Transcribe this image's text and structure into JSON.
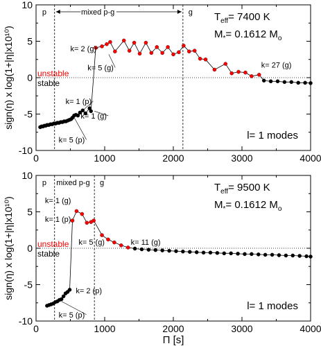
{
  "chart_data": [
    {
      "type": "scatter",
      "xlabel": "",
      "ylabel": "sign(η) x log(1+|η|x10¹⁰)",
      "xlim": [
        0,
        4000
      ],
      "ylim": [
        -10,
        10
      ],
      "x_ticks": [
        "0",
        "1000",
        "2000",
        "3000",
        "4000"
      ],
      "y_ticks": [
        "-10",
        "-5",
        "0",
        "5",
        "10"
      ],
      "grid": false,
      "info": {
        "teff_label": "T",
        "teff_sub": "eff",
        "teff_value": "= 7400 K",
        "mass_label": "M",
        "mass_sub": "*",
        "mass_value": "= 0.1612 M",
        "mass_unit_sub": "o"
      },
      "modes_label": "l= 1 modes",
      "unstable_label": "unstable",
      "stable_label": "stable",
      "regions": {
        "boundaries": [
          270,
          2140
        ],
        "labels": [
          {
            "text": "p",
            "x": 120
          },
          {
            "text": "mixed p-g",
            "x": 900
          },
          {
            "text": "g",
            "x": 2250
          }
        ]
      },
      "annotations": [
        {
          "text": "k= 2 (g)",
          "x": 500,
          "y": 3.6,
          "arrow_to": [
            870,
            4.1
          ]
        },
        {
          "text": "k= 5 (g)",
          "x": 750,
          "y": 1.0,
          "arrow_to": [
            1060,
            3.2
          ]
        },
        {
          "text": "k= 1 (p)",
          "x": 430,
          "y": -3.6,
          "arrow_to": [
            680,
            -4.5
          ]
        },
        {
          "text": "k= 1 (g)",
          "x": 650,
          "y": -5.6,
          "arrow_to": [
            850,
            -4.6
          ]
        },
        {
          "text": "k= 5 (p)",
          "x": 330,
          "y": -8.9,
          "arrow_to": [
            540,
            -5.2
          ]
        },
        {
          "text": "k= 27 (g)",
          "x": 3280,
          "y": 1.4
        }
      ],
      "series": [
        {
          "color": "#ff0000",
          "x": [
            870,
            960,
            1030,
            1080,
            1150,
            1280,
            1360,
            1430,
            1510,
            1600,
            1680,
            1760,
            1840,
            1920,
            2000,
            2080,
            2150,
            2230,
            2310,
            2390,
            2470,
            2600,
            2760,
            2850,
            2950,
            3050,
            3140,
            3250
          ],
          "y": [
            4.1,
            4.3,
            4.6,
            4.9,
            3.6,
            5.1,
            3.7,
            4.8,
            3.3,
            4.8,
            3.4,
            4.2,
            3.4,
            4.2,
            3.2,
            3.5,
            4.4,
            3.6,
            3.7,
            2.6,
            2.5,
            1.1,
            1.9,
            0.6,
            0.8,
            0.7,
            0.2,
            0.4
          ]
        },
        {
          "color": "#000000",
          "x": [
            60,
            80,
            100,
            120,
            140,
            160,
            185,
            210,
            235,
            260,
            285,
            310,
            335,
            360,
            385,
            410,
            435,
            460,
            485,
            510,
            530,
            555,
            580,
            610,
            640,
            680,
            720,
            780,
            800,
            3320,
            3420,
            3520,
            3620,
            3720,
            3820,
            3920,
            4000
          ],
          "y": [
            -6.8,
            -6.7,
            -6.7,
            -6.6,
            -6.6,
            -6.5,
            -6.5,
            -6.4,
            -6.4,
            -6.3,
            -6.3,
            -6.2,
            -6.2,
            -6.1,
            -6.1,
            -6.0,
            -6.0,
            -5.9,
            -5.8,
            -5.7,
            -5.5,
            -5.2,
            -5.1,
            -5.2,
            -4.8,
            -4.5,
            -4.9,
            -4.2,
            -4.6,
            -0.4,
            -0.5,
            -0.5,
            -0.6,
            -0.6,
            -0.7,
            -0.7,
            -0.75
          ]
        }
      ],
      "line_x": [
        60,
        80,
        100,
        120,
        140,
        160,
        185,
        210,
        235,
        260,
        285,
        310,
        335,
        360,
        385,
        410,
        435,
        460,
        485,
        510,
        530,
        555,
        580,
        610,
        640,
        680,
        720,
        780,
        800,
        870,
        960,
        1030,
        1080,
        1150,
        1280,
        1360,
        1430,
        1510,
        1600,
        1680,
        1760,
        1840,
        1920,
        2000,
        2080,
        2150,
        2230,
        2310,
        2390,
        2470,
        2600,
        2760,
        2850,
        2950,
        3050,
        3140,
        3250,
        3320,
        3420,
        3520,
        3620,
        3720,
        3820,
        3920,
        4000
      ],
      "line_y": [
        -6.8,
        -6.7,
        -6.7,
        -6.6,
        -6.6,
        -6.5,
        -6.5,
        -6.4,
        -6.4,
        -6.3,
        -6.3,
        -6.2,
        -6.2,
        -6.1,
        -6.1,
        -6.0,
        -6.0,
        -5.9,
        -5.8,
        -5.7,
        -5.5,
        -5.2,
        -5.1,
        -5.2,
        -4.8,
        -4.5,
        -4.9,
        -4.2,
        -4.6,
        4.1,
        4.3,
        4.6,
        4.9,
        3.6,
        5.1,
        3.7,
        4.8,
        3.3,
        4.8,
        3.4,
        4.2,
        3.4,
        4.2,
        3.2,
        3.5,
        4.4,
        3.6,
        3.7,
        2.6,
        2.5,
        1.1,
        1.9,
        0.6,
        0.8,
        0.7,
        0.2,
        0.4,
        -0.4,
        -0.5,
        -0.5,
        -0.6,
        -0.6,
        -0.7,
        -0.7,
        -0.75
      ]
    },
    {
      "type": "scatter",
      "xlabel": "Π [s]",
      "ylabel": "sign(η) x log(1+|η|x10¹⁰)",
      "xlim": [
        0,
        4000
      ],
      "ylim": [
        -10,
        10
      ],
      "x_ticks": [
        "0",
        "1000",
        "2000",
        "3000",
        "4000"
      ],
      "y_ticks": [
        "-10",
        "-5",
        "0",
        "5",
        "10"
      ],
      "grid": false,
      "info": {
        "teff_label": "T",
        "teff_sub": "eff",
        "teff_value": "= 9500 K",
        "mass_label": "M",
        "mass_sub": "*",
        "mass_value": "= 0.1612 M",
        "mass_unit_sub": "o"
      },
      "modes_label": "l= 1 modes",
      "unstable_label": "unstable",
      "stable_label": "stable",
      "regions": {
        "boundaries": [
          270,
          850
        ],
        "labels": [
          {
            "text": "p",
            "x": 120
          },
          {
            "text": "mixed p-g",
            "x": 540
          },
          {
            "text": "g",
            "x": 960
          }
        ]
      },
      "annotations": [
        {
          "text": "k= 1 (g)",
          "x": 130,
          "y": 6.2
        },
        {
          "text": "k= 1 (p)",
          "x": 130,
          "y": 3.6
        },
        {
          "text": "k= 5 (g)",
          "x": 620,
          "y": 0.5
        },
        {
          "text": "k= 11 (g)",
          "x": 1380,
          "y": 0.5
        },
        {
          "text": "k= 2 (p)",
          "x": 580,
          "y": -6.2
        },
        {
          "text": "k= 5 (p)",
          "x": 330,
          "y": -9.5,
          "arrow_to": [
            370,
            -7.3
          ]
        }
      ],
      "series": [
        {
          "color": "#ff0000",
          "x": [
            530,
            590,
            670,
            740,
            800,
            840,
            960,
            1050,
            1140,
            1240,
            1340
          ],
          "y": [
            3.8,
            5.1,
            4.7,
            3.5,
            3.6,
            3.8,
            1.8,
            1.2,
            0.8,
            0.4,
            0.1
          ]
        },
        {
          "color": "#000000",
          "x": [
            160,
            190,
            220,
            250,
            280,
            310,
            340,
            370,
            400,
            430,
            460,
            490,
            1440,
            1540,
            1640,
            1740,
            1840,
            1940,
            2040,
            2140,
            2240,
            2340,
            2440,
            2540,
            2640,
            2740,
            2840,
            2940,
            3040,
            3140,
            3240,
            3340,
            3440,
            3540,
            3640,
            3740,
            3840,
            3940,
            4000
          ],
          "y": [
            -7.9,
            -7.8,
            -7.7,
            -7.6,
            -7.4,
            -7.3,
            -7.1,
            -7.0,
            -6.6,
            -6.2,
            -6.0,
            -5.7,
            -0.05,
            -0.15,
            -0.2,
            -0.25,
            -0.3,
            -0.35,
            -0.4,
            -0.45,
            -0.5,
            -0.55,
            -0.6,
            -0.6,
            -0.65,
            -0.7,
            -0.7,
            -0.75,
            -0.8,
            -0.8,
            -0.85,
            -0.9,
            -0.9,
            -0.95,
            -1.0,
            -1.0,
            -1.05,
            -1.1,
            -1.15
          ]
        }
      ],
      "line_x": [
        160,
        190,
        220,
        250,
        280,
        310,
        340,
        370,
        400,
        430,
        460,
        490,
        530,
        590,
        670,
        740,
        800,
        840,
        960,
        1050,
        1140,
        1240,
        1340,
        1440,
        1540,
        1640,
        1740,
        1840,
        1940,
        2040,
        2140,
        2240,
        2340,
        2440,
        2540,
        2640,
        2740,
        2840,
        2940,
        3040,
        3140,
        3240,
        3340,
        3440,
        3540,
        3640,
        3740,
        3840,
        3940,
        4000
      ],
      "line_y": [
        -7.9,
        -7.8,
        -7.7,
        -7.6,
        -7.4,
        -7.3,
        -7.1,
        -7.0,
        -6.6,
        -6.2,
        -6.0,
        -5.7,
        3.8,
        5.1,
        4.7,
        3.5,
        3.6,
        3.8,
        1.8,
        1.2,
        0.8,
        0.4,
        0.1,
        -0.05,
        -0.15,
        -0.2,
        -0.25,
        -0.3,
        -0.35,
        -0.4,
        -0.45,
        -0.5,
        -0.55,
        -0.6,
        -0.6,
        -0.65,
        -0.7,
        -0.7,
        -0.75,
        -0.8,
        -0.8,
        -0.85,
        -0.9,
        -0.9,
        -0.95,
        -1.0,
        -1.0,
        -1.05,
        -1.1,
        -1.15
      ]
    }
  ]
}
